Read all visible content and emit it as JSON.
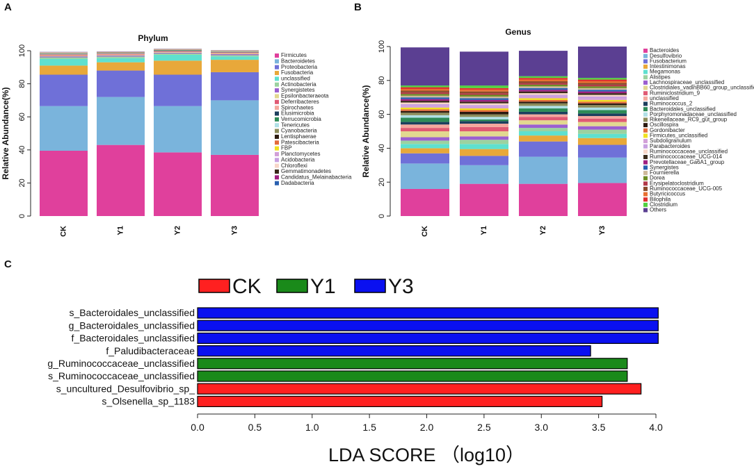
{
  "panels": {
    "a_label": "A",
    "b_label": "B",
    "c_label": "C"
  },
  "chart_data": [
    {
      "type": "bar",
      "stacked": true,
      "title": "Phylum",
      "ylabel": "Relative Abundance(%)",
      "ylim": [
        0,
        100
      ],
      "yticks": [
        0,
        20,
        40,
        60,
        80,
        100
      ],
      "categories": [
        "CK",
        "Y1",
        "Y2",
        "Y3"
      ],
      "series": [
        {
          "name": "Firmicutes",
          "color": "#e0409c",
          "values": [
            39.5,
            43,
            38.5,
            37
          ]
        },
        {
          "name": "Bacteroidetes",
          "color": "#7ab4dc",
          "values": [
            27,
            29,
            28,
            33
          ]
        },
        {
          "name": "Proteobacteria",
          "color": "#6f70d8",
          "values": [
            19,
            16,
            19,
            17
          ]
        },
        {
          "name": "Fusobacteria",
          "color": "#e8a83a",
          "values": [
            5.5,
            5,
            8.5,
            7.5
          ]
        },
        {
          "name": "unclassified",
          "color": "#5fe0cf",
          "values": [
            4,
            2.5,
            3.5,
            2
          ]
        },
        {
          "name": "Actinobacteria",
          "color": "#9bd2a0",
          "values": [
            1,
            1,
            0.8,
            0.8
          ]
        },
        {
          "name": "Synergistetes",
          "color": "#9b5fd0",
          "values": [
            0.6,
            0.6,
            0.5,
            0.6
          ]
        },
        {
          "name": "Epsilonbacteraeota",
          "color": "#e2d890",
          "values": [
            0.5,
            0.5,
            0.4,
            0.5
          ]
        },
        {
          "name": "Deferribacteres",
          "color": "#e05a74",
          "values": [
            0.4,
            0.4,
            0.3,
            0.3
          ]
        },
        {
          "name": "Spirochaetes",
          "color": "#f4a89e",
          "values": [
            0.3,
            0.3,
            0.3,
            0.3
          ]
        },
        {
          "name": "Elusimicrobia",
          "color": "#1d3f5e",
          "values": [
            0.2,
            0.2,
            0.2,
            0.2
          ]
        },
        {
          "name": "Verrucomicrobia",
          "color": "#2e8b57",
          "values": [
            0.2,
            0.1,
            0.2,
            0.1
          ]
        },
        {
          "name": "Tenericutes",
          "color": "#b0e0e6",
          "values": [
            0.2,
            0.1,
            0.1,
            0.1
          ]
        },
        {
          "name": "Cyanobacteria",
          "color": "#8c8c5a",
          "values": [
            0.1,
            0.1,
            0.1,
            0.1
          ]
        },
        {
          "name": "Lentisphaerae",
          "color": "#2b1a10",
          "values": [
            0.1,
            0.1,
            0.1,
            0.1
          ]
        },
        {
          "name": "Patescibacteria",
          "color": "#e36b3b",
          "values": [
            0.1,
            0.1,
            0.1,
            0.1
          ]
        },
        {
          "name": "FBP",
          "color": "#f0e020",
          "values": [
            0.1,
            0.1,
            0.1,
            0.1
          ]
        },
        {
          "name": "Planctomycetes",
          "color": "#d2a0d8",
          "values": [
            0.1,
            0.1,
            0.1,
            0.1
          ]
        },
        {
          "name": "Acidobacteria",
          "color": "#c8a0e0",
          "values": [
            0.1,
            0.1,
            0.1,
            0.1
          ]
        },
        {
          "name": "Chloroflexi",
          "color": "#f7d6c8",
          "values": [
            0.1,
            0.1,
            0.1,
            0.1
          ]
        },
        {
          "name": "Gemmatimonadetes",
          "color": "#3a2a1a",
          "values": [
            0.1,
            0.1,
            0.1,
            0.1
          ]
        },
        {
          "name": "Candidatus_Melainabacteria",
          "color": "#a02080",
          "values": [
            0.05,
            0.05,
            0.05,
            0.05
          ]
        },
        {
          "name": "Dadabacteria",
          "color": "#2a60b0",
          "values": [
            0.05,
            0.05,
            0.05,
            0.05
          ]
        }
      ]
    },
    {
      "type": "bar",
      "stacked": true,
      "title": "Genus",
      "ylabel": "Relative Abundance(%)",
      "ylim": [
        0,
        100
      ],
      "yticks": [
        0,
        20,
        40,
        60,
        80,
        100
      ],
      "categories": [
        "CK",
        "Y1",
        "Y2",
        "Y3"
      ],
      "series": [
        {
          "name": "Bacteroides",
          "color": "#e0409c",
          "values": [
            16,
            19,
            19,
            19.5
          ]
        },
        {
          "name": "Desulfovibrio",
          "color": "#7ab4dc",
          "values": [
            15,
            11,
            16,
            15
          ]
        },
        {
          "name": "Fusobacterium",
          "color": "#6f70d8",
          "values": [
            6,
            5.5,
            9,
            7.5
          ]
        },
        {
          "name": "Intestinimonas",
          "color": "#e8a83a",
          "values": [
            3,
            4,
            3.5,
            4
          ]
        },
        {
          "name": "Megamonas",
          "color": "#5fe0cf",
          "values": [
            2.5,
            3,
            2.5,
            2.5
          ]
        },
        {
          "name": "Alistipes",
          "color": "#9bd2a0",
          "values": [
            2,
            2.5,
            2,
            2.5
          ]
        },
        {
          "name": "Lachnospiraceae_unclassified",
          "color": "#9b5fd0",
          "values": [
            2,
            2,
            2,
            2
          ]
        },
        {
          "name": "Clostridiales_vadinBB60_group_unclassified",
          "color": "#e2d890",
          "values": [
            3.5,
            3,
            2.5,
            2.5
          ]
        },
        {
          "name": "Ruminiclostridium_9",
          "color": "#e05a74",
          "values": [
            2,
            2.5,
            2,
            2
          ]
        },
        {
          "name": "unclassified",
          "color": "#f4a89e",
          "values": [
            2,
            2,
            1.5,
            1.5
          ]
        },
        {
          "name": "Ruminococcus_2",
          "color": "#1d3f5e",
          "values": [
            1.5,
            1.5,
            1.5,
            1.5
          ]
        },
        {
          "name": "Bacteroidales_unclassified",
          "color": "#2e8b57",
          "values": [
            2.5,
            1,
            2,
            2
          ]
        },
        {
          "name": "Porphyromonadaceae_unclassified",
          "color": "#b0e0e6",
          "values": [
            1.5,
            1.5,
            1.5,
            1.5
          ]
        },
        {
          "name": "Rikenellaceae_RC9_gut_group",
          "color": "#8c8c5a",
          "values": [
            1.5,
            1.5,
            1.5,
            1.5
          ]
        },
        {
          "name": "Oscillospira",
          "color": "#2b1a10",
          "values": [
            1,
            1.5,
            1,
            1
          ]
        },
        {
          "name": "Gordonibacter",
          "color": "#e36b3b",
          "values": [
            1,
            1,
            1,
            1
          ]
        },
        {
          "name": "Firmicutes_unclassified",
          "color": "#f0e020",
          "values": [
            1,
            1,
            1,
            1
          ]
        },
        {
          "name": "Subdoligranulum",
          "color": "#d2a0d8",
          "values": [
            1,
            1,
            1,
            1
          ]
        },
        {
          "name": "Parabacteroides",
          "color": "#c8a0e0",
          "values": [
            1,
            1,
            1,
            1
          ]
        },
        {
          "name": "Ruminococcaceae_unclassified",
          "color": "#f7d6c8",
          "values": [
            1,
            1,
            1,
            1
          ]
        },
        {
          "name": "Ruminococcaceae_UCG-014",
          "color": "#3a2a1a",
          "values": [
            1,
            1,
            1,
            1
          ]
        },
        {
          "name": "Prevotellaceae_Ga6A1_group",
          "color": "#a02080",
          "values": [
            1,
            1,
            1,
            1
          ]
        },
        {
          "name": "Synergistes",
          "color": "#2a60b0",
          "values": [
            1,
            1,
            1,
            1
          ]
        },
        {
          "name": "Fournierella",
          "color": "#cdb89a",
          "values": [
            1,
            1,
            1,
            1
          ]
        },
        {
          "name": "Dorea",
          "color": "#6b8e23",
          "values": [
            1,
            1,
            1,
            1
          ]
        },
        {
          "name": "Erysipelatoclostridium",
          "color": "#b23a48",
          "values": [
            1,
            1,
            1,
            1
          ]
        },
        {
          "name": "Ruminococcaceae_UCG-005",
          "color": "#8a4b2a",
          "values": [
            1,
            1,
            1,
            1
          ]
        },
        {
          "name": "Butyricicoccus",
          "color": "#e87030",
          "values": [
            1,
            1,
            1,
            1
          ]
        },
        {
          "name": "Bilophila",
          "color": "#e03030",
          "values": [
            1,
            1,
            1,
            1
          ]
        },
        {
          "name": "Clostridium",
          "color": "#50d040",
          "values": [
            1,
            1.5,
            1,
            1
          ]
        },
        {
          "name": "Others",
          "color": "#5b3f92",
          "values": [
            22.5,
            20,
            15,
            18.5
          ]
        }
      ]
    },
    {
      "type": "bar",
      "orientation": "horizontal",
      "xlabel": "LDA SCORE （log10）",
      "xlim": [
        0,
        4
      ],
      "xticks": [
        "0.0",
        "0.5",
        "1.0",
        "1.5",
        "2.0",
        "2.5",
        "3.0",
        "3.5",
        "4.0"
      ],
      "legend": [
        {
          "name": "CK",
          "color": "#ff2020"
        },
        {
          "name": "Y1",
          "color": "#1a8a1a"
        },
        {
          "name": "Y3",
          "color": "#0a10f0"
        }
      ],
      "bars": [
        {
          "label": "s_Bacteroidales_unclassified",
          "value": 4.02,
          "group": "Y3"
        },
        {
          "label": "g_Bacteroidales_unclassified",
          "value": 4.02,
          "group": "Y3"
        },
        {
          "label": "f_Bacteroidales_unclassified",
          "value": 4.02,
          "group": "Y3"
        },
        {
          "label": "f_Paludibacteraceae",
          "value": 3.43,
          "group": "Y3"
        },
        {
          "label": "g_Ruminococcaceae_unclassified",
          "value": 3.75,
          "group": "Y1"
        },
        {
          "label": "s_Ruminococcaceae_unclassified",
          "value": 3.75,
          "group": "Y1"
        },
        {
          "label": "s_uncultured_Desulfovibrio_sp_",
          "value": 3.87,
          "group": "CK"
        },
        {
          "label": "s_Olsenella_sp_1183",
          "value": 3.53,
          "group": "CK"
        }
      ]
    }
  ]
}
